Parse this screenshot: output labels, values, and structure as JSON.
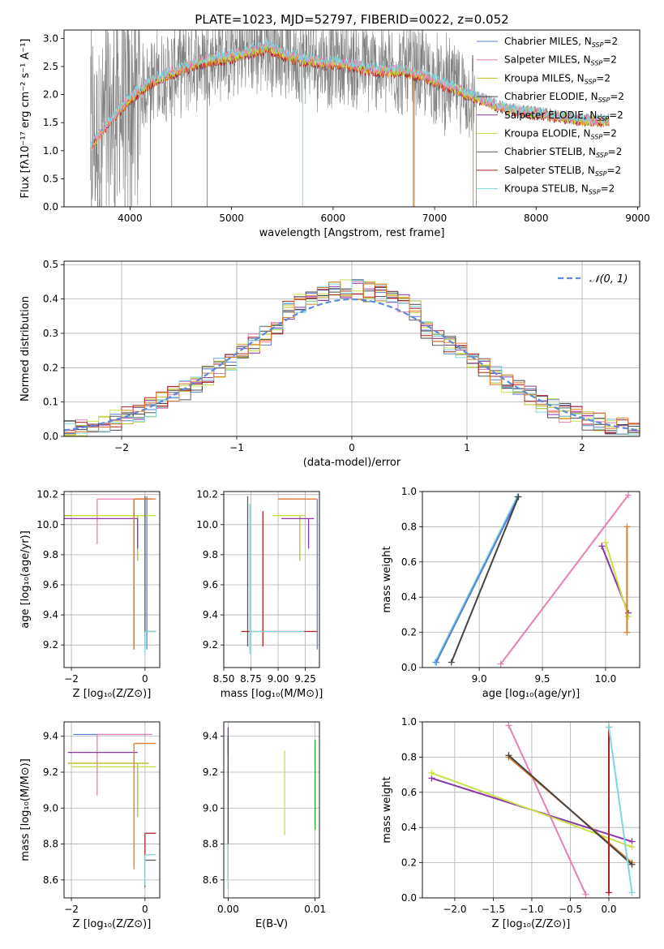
{
  "figure": {
    "title": "PLATE=1023, MJD=52797, FIBERID=0022, z=0.052"
  },
  "colors": {
    "Chabrier MILES": "#5b7fd9",
    "Salpeter MILES": "#e77fb5",
    "Kroupa MILES": "#bcbd22",
    "Chabrier ELODIE": "#444444",
    "Salpeter ELODIE": "#8a35a8",
    "Kroupa ELODIE": "#c8e04a",
    "Chabrier STELIB": "#5a5a5a",
    "Salpeter STELIB": "#b22222",
    "Kroupa STELIB": "#7fd6df",
    "data": "#808080",
    "orange": "#e07b2a",
    "green": "#2ca02c",
    "normal": "#5b8bd9"
  },
  "chart_data": [
    {
      "id": "spectrum",
      "type": "line",
      "title": "PLATE=1023, MJD=52797, FIBERID=0022, z=0.052",
      "xlabel": "wavelength [Angstrom, rest frame]",
      "ylabel": "Flux [fλ10⁻¹⁷ erg cm⁻² s⁻¹ A⁻¹]",
      "xlim": [
        3350,
        9020
      ],
      "ylim": [
        0,
        3.15
      ],
      "xticks": [
        4000,
        5000,
        6000,
        7000,
        8000,
        9000
      ],
      "yticks": [
        0.0,
        0.5,
        1.0,
        1.5,
        2.0,
        2.5,
        3.0
      ],
      "legend_position": "top-right",
      "legend": [
        "Chabrier MILES, N_SSP=2",
        "Salpeter MILES, N_SSP=2",
        "Kroupa MILES, N_SSP=2",
        "Chabrier ELODIE, N_SSP=2",
        "Salpeter ELODIE, N_SSP=2",
        "Kroupa ELODIE, N_SSP=2",
        "Chabrier STELIB, N_SSP=2",
        "Salpeter STELIB, N_SSP=2",
        "Kroupa STELIB, N_SSP=2"
      ],
      "continuum": {
        "x": [
          3620,
          3700,
          3800,
          3900,
          4000,
          4100,
          4200,
          4400,
          4600,
          4800,
          5000,
          5200,
          5350,
          5500,
          5700,
          5900,
          6100,
          6300,
          6500,
          6700,
          6900,
          7100,
          7300,
          7500,
          7700,
          7900,
          8100,
          8300,
          8500,
          8700
        ],
        "y": [
          1.1,
          1.3,
          1.55,
          1.75,
          1.95,
          2.1,
          2.25,
          2.4,
          2.55,
          2.65,
          2.7,
          2.8,
          2.88,
          2.75,
          2.65,
          2.6,
          2.58,
          2.5,
          2.45,
          2.45,
          2.35,
          2.2,
          2.05,
          1.9,
          1.75,
          1.7,
          1.65,
          1.6,
          1.55,
          1.55
        ]
      }
    },
    {
      "id": "residuals",
      "type": "histogram",
      "xlabel": "(data-model)/error",
      "ylabel": "Normed distribution",
      "xlim": [
        -2.5,
        2.5
      ],
      "ylim": [
        0,
        0.51
      ],
      "xticks": [
        -2,
        -1,
        0,
        1,
        2
      ],
      "yticks": [
        0.0,
        0.1,
        0.2,
        0.3,
        0.4,
        0.5
      ],
      "legend": [
        "𝒩(0, 1)"
      ],
      "legend_position": "top-right",
      "bin_width": 0.1,
      "reference_curve": "normal(0,1)"
    },
    {
      "id": "z-age",
      "type": "errorbar",
      "xlabel": "Z [log₁₀(Z/Z⊙)]",
      "ylabel": "age  [log₁₀(age/yr)]",
      "xlim": [
        -2.2,
        0.4
      ],
      "ylim": [
        9.05,
        10.22
      ],
      "xticks": [
        -2,
        0
      ],
      "yticks": [
        9.2,
        9.4,
        9.6,
        9.8,
        10.0,
        10.2
      ],
      "series": [
        {
          "name": "Chabrier MILES",
          "x": 0.05,
          "y": 10.17,
          "xerr": [
            0.3,
            0.05
          ],
          "yerr": [
            1.0,
            0.02
          ]
        },
        {
          "name": "Salpeter MILES",
          "x": -1.3,
          "y": 10.17,
          "xerr": [
            0.0,
            1.5
          ],
          "yerr": [
            0.3,
            0.0
          ]
        },
        {
          "name": "Kroupa MILES",
          "x": -0.2,
          "y": 10.06,
          "xerr": [
            2.0,
            0.3
          ],
          "yerr": [
            0.3,
            0.0
          ]
        },
        {
          "name": "Salpeter ELODIE",
          "x": -0.2,
          "y": 10.04,
          "xerr": [
            2.0,
            0.0
          ],
          "yerr": [
            0.2,
            0.0
          ]
        },
        {
          "name": "Kroupa ELODIE",
          "x": 0.3,
          "y": 10.06,
          "xerr": [
            2.3,
            0.0
          ],
          "yerr": [
            0.0,
            0.0
          ]
        },
        {
          "name": "Chabrier STELIB",
          "x": 0.0,
          "y": 9.29,
          "xerr": [
            0.0,
            0.3
          ],
          "yerr": [
            0.1,
            0.9
          ]
        },
        {
          "name": "Salpeter STELIB",
          "x": -0.3,
          "y": 10.17,
          "xerr": [
            0.0,
            0.5
          ],
          "yerr": [
            1.0,
            0.0
          ]
        },
        {
          "name": "Kroupa STELIB",
          "x": 0.0,
          "y": 9.29,
          "xerr": [
            0.0,
            0.3
          ],
          "yerr": [
            0.15,
            0.0
          ]
        },
        {
          "name": "orange",
          "x": -0.3,
          "y": 10.17,
          "xerr": [
            0.0,
            0.6
          ],
          "yerr": [
            1.0,
            0.0
          ]
        }
      ]
    },
    {
      "id": "mass-age",
      "type": "errorbar",
      "xlabel": "mass [log₁₀(M/M⊙)]",
      "ylabel": "",
      "xlim": [
        8.5,
        9.38
      ],
      "ylim": [
        9.05,
        10.22
      ],
      "xticks": [
        8.5,
        8.75,
        9.0,
        9.25
      ],
      "tick_labels": [
        "8.50",
        "8.75",
        "9.00",
        "9.25"
      ],
      "yticks": [
        9.2,
        9.4,
        9.6,
        9.8,
        10.0,
        10.2
      ],
      "series": [
        {
          "name": "Chabrier MILES",
          "x": 9.36,
          "y": 10.17,
          "yerr": [
            1.0,
            0.0
          ]
        },
        {
          "name": "Salpeter MILES",
          "x": 9.0,
          "y": 10.17,
          "xerr": [
            0.0,
            0.36
          ]
        },
        {
          "name": "Kroupa MILES",
          "x": 9.2,
          "y": 10.06,
          "yerr": [
            0.3,
            0.0
          ]
        },
        {
          "name": "Salpeter ELODIE",
          "x": 9.28,
          "y": 10.04,
          "xerr": [
            0.25,
            0.05
          ],
          "yerr": [
            0.2,
            0.0
          ]
        },
        {
          "name": "Kroupa ELODIE",
          "x": 9.25,
          "y": 10.06,
          "xerr": [
            0.3,
            0.0
          ],
          "yerr": [
            0.0,
            0.0
          ]
        },
        {
          "name": "Chabrier STELIB",
          "x": 8.72,
          "y": 9.29,
          "yerr": [
            0.1,
            0.9
          ]
        },
        {
          "name": "Salpeter STELIB",
          "x": 8.86,
          "y": 9.29,
          "xerr": [
            0.2,
            0.5
          ],
          "yerr": [
            0.1,
            0.8
          ]
        },
        {
          "name": "Kroupa STELIB",
          "x": 8.74,
          "y": 9.29,
          "xerr": [
            0.0,
            0.5
          ],
          "yerr": [
            0.15,
            0.85
          ]
        },
        {
          "name": "orange",
          "x": 9.0,
          "y": 10.17,
          "xerr": [
            0.0,
            0.35
          ]
        }
      ]
    },
    {
      "id": "age-weight",
      "type": "line",
      "xlabel": "age  [log₁₀(age/yr)]",
      "ylabel": "mass weight",
      "xlim": [
        8.55,
        10.27
      ],
      "ylim": [
        0,
        1.0
      ],
      "xticks": [
        9.0,
        9.5,
        10.0
      ],
      "yticks": [
        0.0,
        0.2,
        0.4,
        0.6,
        0.8,
        1.0
      ],
      "series": [
        {
          "name": "Kroupa STELIB",
          "x": [
            8.65,
            9.3
          ],
          "y": [
            0.03,
            0.97
          ]
        },
        {
          "name": "Chabrier MILES",
          "x": [
            8.66,
            9.31
          ],
          "y": [
            0.03,
            0.97
          ]
        },
        {
          "name": "Chabrier ELODIE",
          "x": [
            8.78,
            9.31
          ],
          "y": [
            0.03,
            0.97
          ]
        },
        {
          "name": "Salpeter MILES",
          "x": [
            9.17,
            10.18
          ],
          "y": [
            0.02,
            0.98
          ]
        },
        {
          "name": "Salpeter ELODIE",
          "x": [
            9.97,
            10.18
          ],
          "y": [
            0.69,
            0.31
          ]
        },
        {
          "name": "Kroupa ELODIE",
          "x": [
            10.0,
            10.18
          ],
          "y": [
            0.71,
            0.29
          ]
        },
        {
          "name": "orange",
          "x": [
            10.17,
            10.17
          ],
          "y": [
            0.8,
            0.2
          ]
        }
      ]
    },
    {
      "id": "z-mass",
      "type": "errorbar",
      "xlabel": "Z [log₁₀(Z/Z⊙)]",
      "ylabel": "mass [log₁₀(M/M⊙)]",
      "xlim": [
        -2.2,
        0.4
      ],
      "ylim": [
        8.5,
        9.48
      ],
      "xticks": [
        -2,
        0
      ],
      "yticks": [
        8.6,
        8.8,
        9.0,
        9.2,
        9.4
      ],
      "series": [
        {
          "name": "Chabrier MILES",
          "x": 0.05,
          "y": 9.41,
          "xerr": [
            2.0,
            0.0
          ],
          "yerr": [
            0.0,
            0.0
          ]
        },
        {
          "name": "Salpeter MILES",
          "x": -1.3,
          "y": 9.41,
          "xerr": [
            0.0,
            1.5
          ],
          "yerr": [
            0.34,
            0.0
          ]
        },
        {
          "name": "Kroupa MILES",
          "x": -0.2,
          "y": 9.25,
          "xerr": [
            1.9,
            0.3
          ],
          "yerr": [
            0.3,
            0.0
          ]
        },
        {
          "name": "Salpeter ELODIE",
          "x": -0.2,
          "y": 9.31,
          "xerr": [
            1.9,
            0.0
          ],
          "yerr": [
            0.0,
            0.0
          ]
        },
        {
          "name": "Kroupa ELODIE",
          "x": 0.3,
          "y": 9.23,
          "xerr": [
            2.3,
            0.0
          ],
          "yerr": [
            0.0,
            0.0
          ]
        },
        {
          "name": "Chabrier STELIB",
          "x": 0.0,
          "y": 8.71,
          "xerr": [
            0.0,
            0.3
          ],
          "yerr": [
            0.15,
            0.0
          ]
        },
        {
          "name": "Salpeter STELIB",
          "x": 0.0,
          "y": 8.86,
          "xerr": [
            0.0,
            0.3
          ],
          "yerr": [
            0.15,
            0.0
          ]
        },
        {
          "name": "Kroupa STELIB",
          "x": 0.0,
          "y": 8.74,
          "xerr": [
            0.0,
            0.3
          ],
          "yerr": [
            0.17,
            0.0
          ]
        },
        {
          "name": "orange",
          "x": -0.3,
          "y": 9.36,
          "xerr": [
            0.0,
            0.6
          ],
          "yerr": [
            0.7,
            0.0
          ]
        }
      ]
    },
    {
      "id": "ebv-mass",
      "type": "errorbar",
      "xlabel": "E(B-V)",
      "ylabel": "",
      "xlim": [
        -0.0005,
        0.0105
      ],
      "ylim": [
        8.5,
        9.48
      ],
      "xticks": [
        0.0,
        0.01
      ],
      "tick_labels": [
        "0.00",
        "0.01"
      ],
      "yticks": [
        8.6,
        8.8,
        9.0,
        9.2,
        9.4
      ],
      "series": [
        {
          "name": "Salpeter ELODIE",
          "x": 0.0,
          "y": 9.4,
          "yerr": [
            0.1,
            0.05
          ]
        },
        {
          "name": "Chabrier ELODIE",
          "x": 0.0,
          "y": 9.2,
          "yerr": [
            0.6,
            0.2
          ]
        },
        {
          "name": "Kroupa ELODIE",
          "x": 0.0065,
          "y": 9.1,
          "yerr": [
            0.25,
            0.22
          ]
        },
        {
          "name": "green",
          "x": 0.01,
          "y": 9.1,
          "yerr": [
            0.22,
            0.28
          ]
        },
        {
          "name": "Kroupa STELIB",
          "x": 0.0,
          "y": 8.7,
          "yerr": [
            0.15,
            0.1
          ]
        }
      ]
    },
    {
      "id": "z-weight",
      "type": "line",
      "xlabel": "Z [log₁₀(Z/Z⊙)]",
      "ylabel": "mass weight",
      "xlim": [
        -2.42,
        0.4
      ],
      "ylim": [
        0,
        1.0
      ],
      "xticks": [
        -2.0,
        -1.5,
        -1.0,
        -0.5,
        0.0
      ],
      "yticks": [
        0.0,
        0.2,
        0.4,
        0.6,
        0.8,
        1.0
      ],
      "series": [
        {
          "name": "Salpeter ELODIE",
          "x": [
            -2.3,
            0.3
          ],
          "y": [
            0.68,
            0.32
          ]
        },
        {
          "name": "Kroupa ELODIE",
          "x": [
            -2.3,
            0.3
          ],
          "y": [
            0.71,
            0.29
          ]
        },
        {
          "name": "Salpeter MILES",
          "x": [
            -1.3,
            -0.3
          ],
          "y": [
            0.98,
            0.02
          ]
        },
        {
          "name": "orange",
          "x": [
            -1.3,
            0.3
          ],
          "y": [
            0.8,
            0.2
          ]
        },
        {
          "name": "Chabrier ELODIE",
          "x": [
            -1.3,
            0.3
          ],
          "y": [
            0.81,
            0.19
          ]
        },
        {
          "name": "Salpeter STELIB",
          "x": [
            0.0,
            0.0
          ],
          "y": [
            0.97,
            0.03
          ]
        },
        {
          "name": "Kroupa STELIB",
          "x": [
            0.0,
            0.3
          ],
          "y": [
            0.97,
            0.03
          ]
        }
      ]
    }
  ]
}
